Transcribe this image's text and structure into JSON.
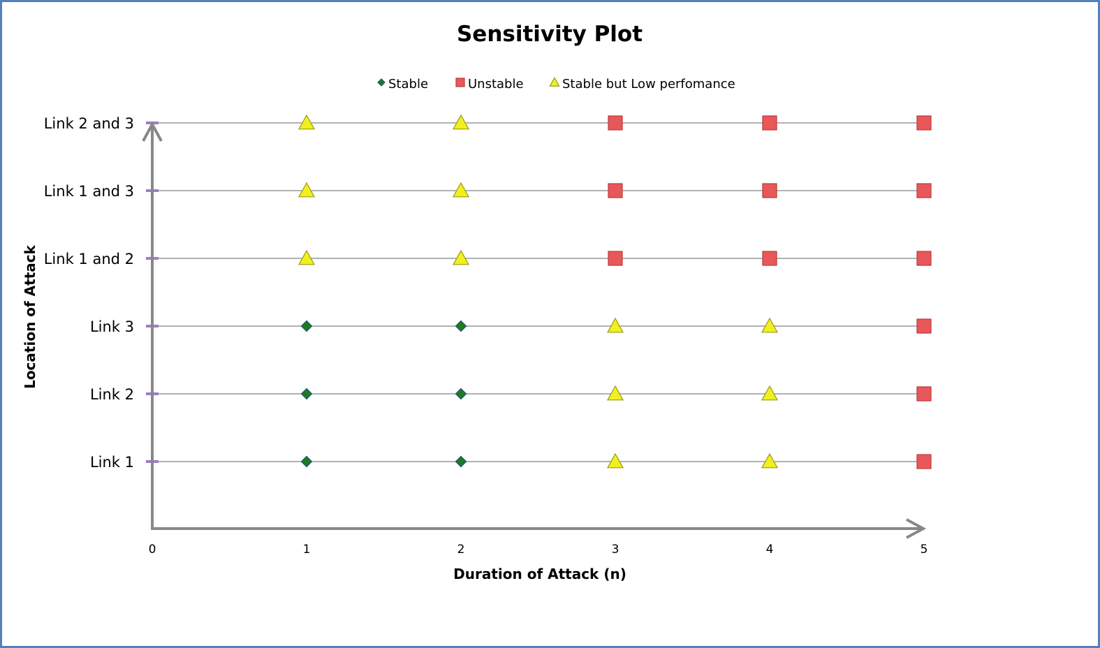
{
  "chart_data": {
    "type": "scatter",
    "title": "Sensitivity Plot",
    "xlabel": "Duration of Attack (n)",
    "ylabel": "Location of Attack",
    "xlim": [
      0,
      5
    ],
    "x_ticks": [
      "0",
      "1",
      "2",
      "3",
      "4",
      "5"
    ],
    "categories": [
      "Link 1",
      "Link 2",
      "Link 3",
      "Link 1 and 2",
      "Link 1 and 3",
      "Link 2 and 3"
    ],
    "legend_position": "top",
    "grid": "horizontal lines at each category",
    "series": [
      {
        "name": "Stable",
        "marker": "diamond",
        "color": "#1e7a1e",
        "points": [
          {
            "x": 1,
            "y": "Link 1"
          },
          {
            "x": 2,
            "y": "Link 1"
          },
          {
            "x": 1,
            "y": "Link 2"
          },
          {
            "x": 2,
            "y": "Link 2"
          },
          {
            "x": 1,
            "y": "Link 3"
          },
          {
            "x": 2,
            "y": "Link 3"
          }
        ]
      },
      {
        "name": "Unstable",
        "marker": "square",
        "color": "#e8585a",
        "points": [
          {
            "x": 5,
            "y": "Link 1"
          },
          {
            "x": 5,
            "y": "Link 2"
          },
          {
            "x": 5,
            "y": "Link 3"
          },
          {
            "x": 3,
            "y": "Link 1 and 2"
          },
          {
            "x": 4,
            "y": "Link 1 and 2"
          },
          {
            "x": 5,
            "y": "Link 1 and 2"
          },
          {
            "x": 3,
            "y": "Link 1 and 3"
          },
          {
            "x": 4,
            "y": "Link 1 and 3"
          },
          {
            "x": 5,
            "y": "Link 1 and 3"
          },
          {
            "x": 3,
            "y": "Link 2 and 3"
          },
          {
            "x": 4,
            "y": "Link 2 and 3"
          },
          {
            "x": 5,
            "y": "Link 2 and 3"
          }
        ]
      },
      {
        "name": "Stable but Low perfomance",
        "marker": "triangle",
        "color": "#f0f020",
        "points": [
          {
            "x": 3,
            "y": "Link 1"
          },
          {
            "x": 4,
            "y": "Link 1"
          },
          {
            "x": 3,
            "y": "Link 2"
          },
          {
            "x": 4,
            "y": "Link 2"
          },
          {
            "x": 3,
            "y": "Link 3"
          },
          {
            "x": 4,
            "y": "Link 3"
          },
          {
            "x": 1,
            "y": "Link 1 and 2"
          },
          {
            "x": 2,
            "y": "Link 1 and 2"
          },
          {
            "x": 1,
            "y": "Link 1 and 3"
          },
          {
            "x": 2,
            "y": "Link 1 and 3"
          },
          {
            "x": 1,
            "y": "Link 2 and 3"
          },
          {
            "x": 2,
            "y": "Link 2 and 3"
          }
        ]
      }
    ]
  },
  "colors": {
    "frame_border": "#4f81bd",
    "axis": "#888888",
    "gridline": "#999999",
    "tick_mark": "#9b7fc8"
  }
}
